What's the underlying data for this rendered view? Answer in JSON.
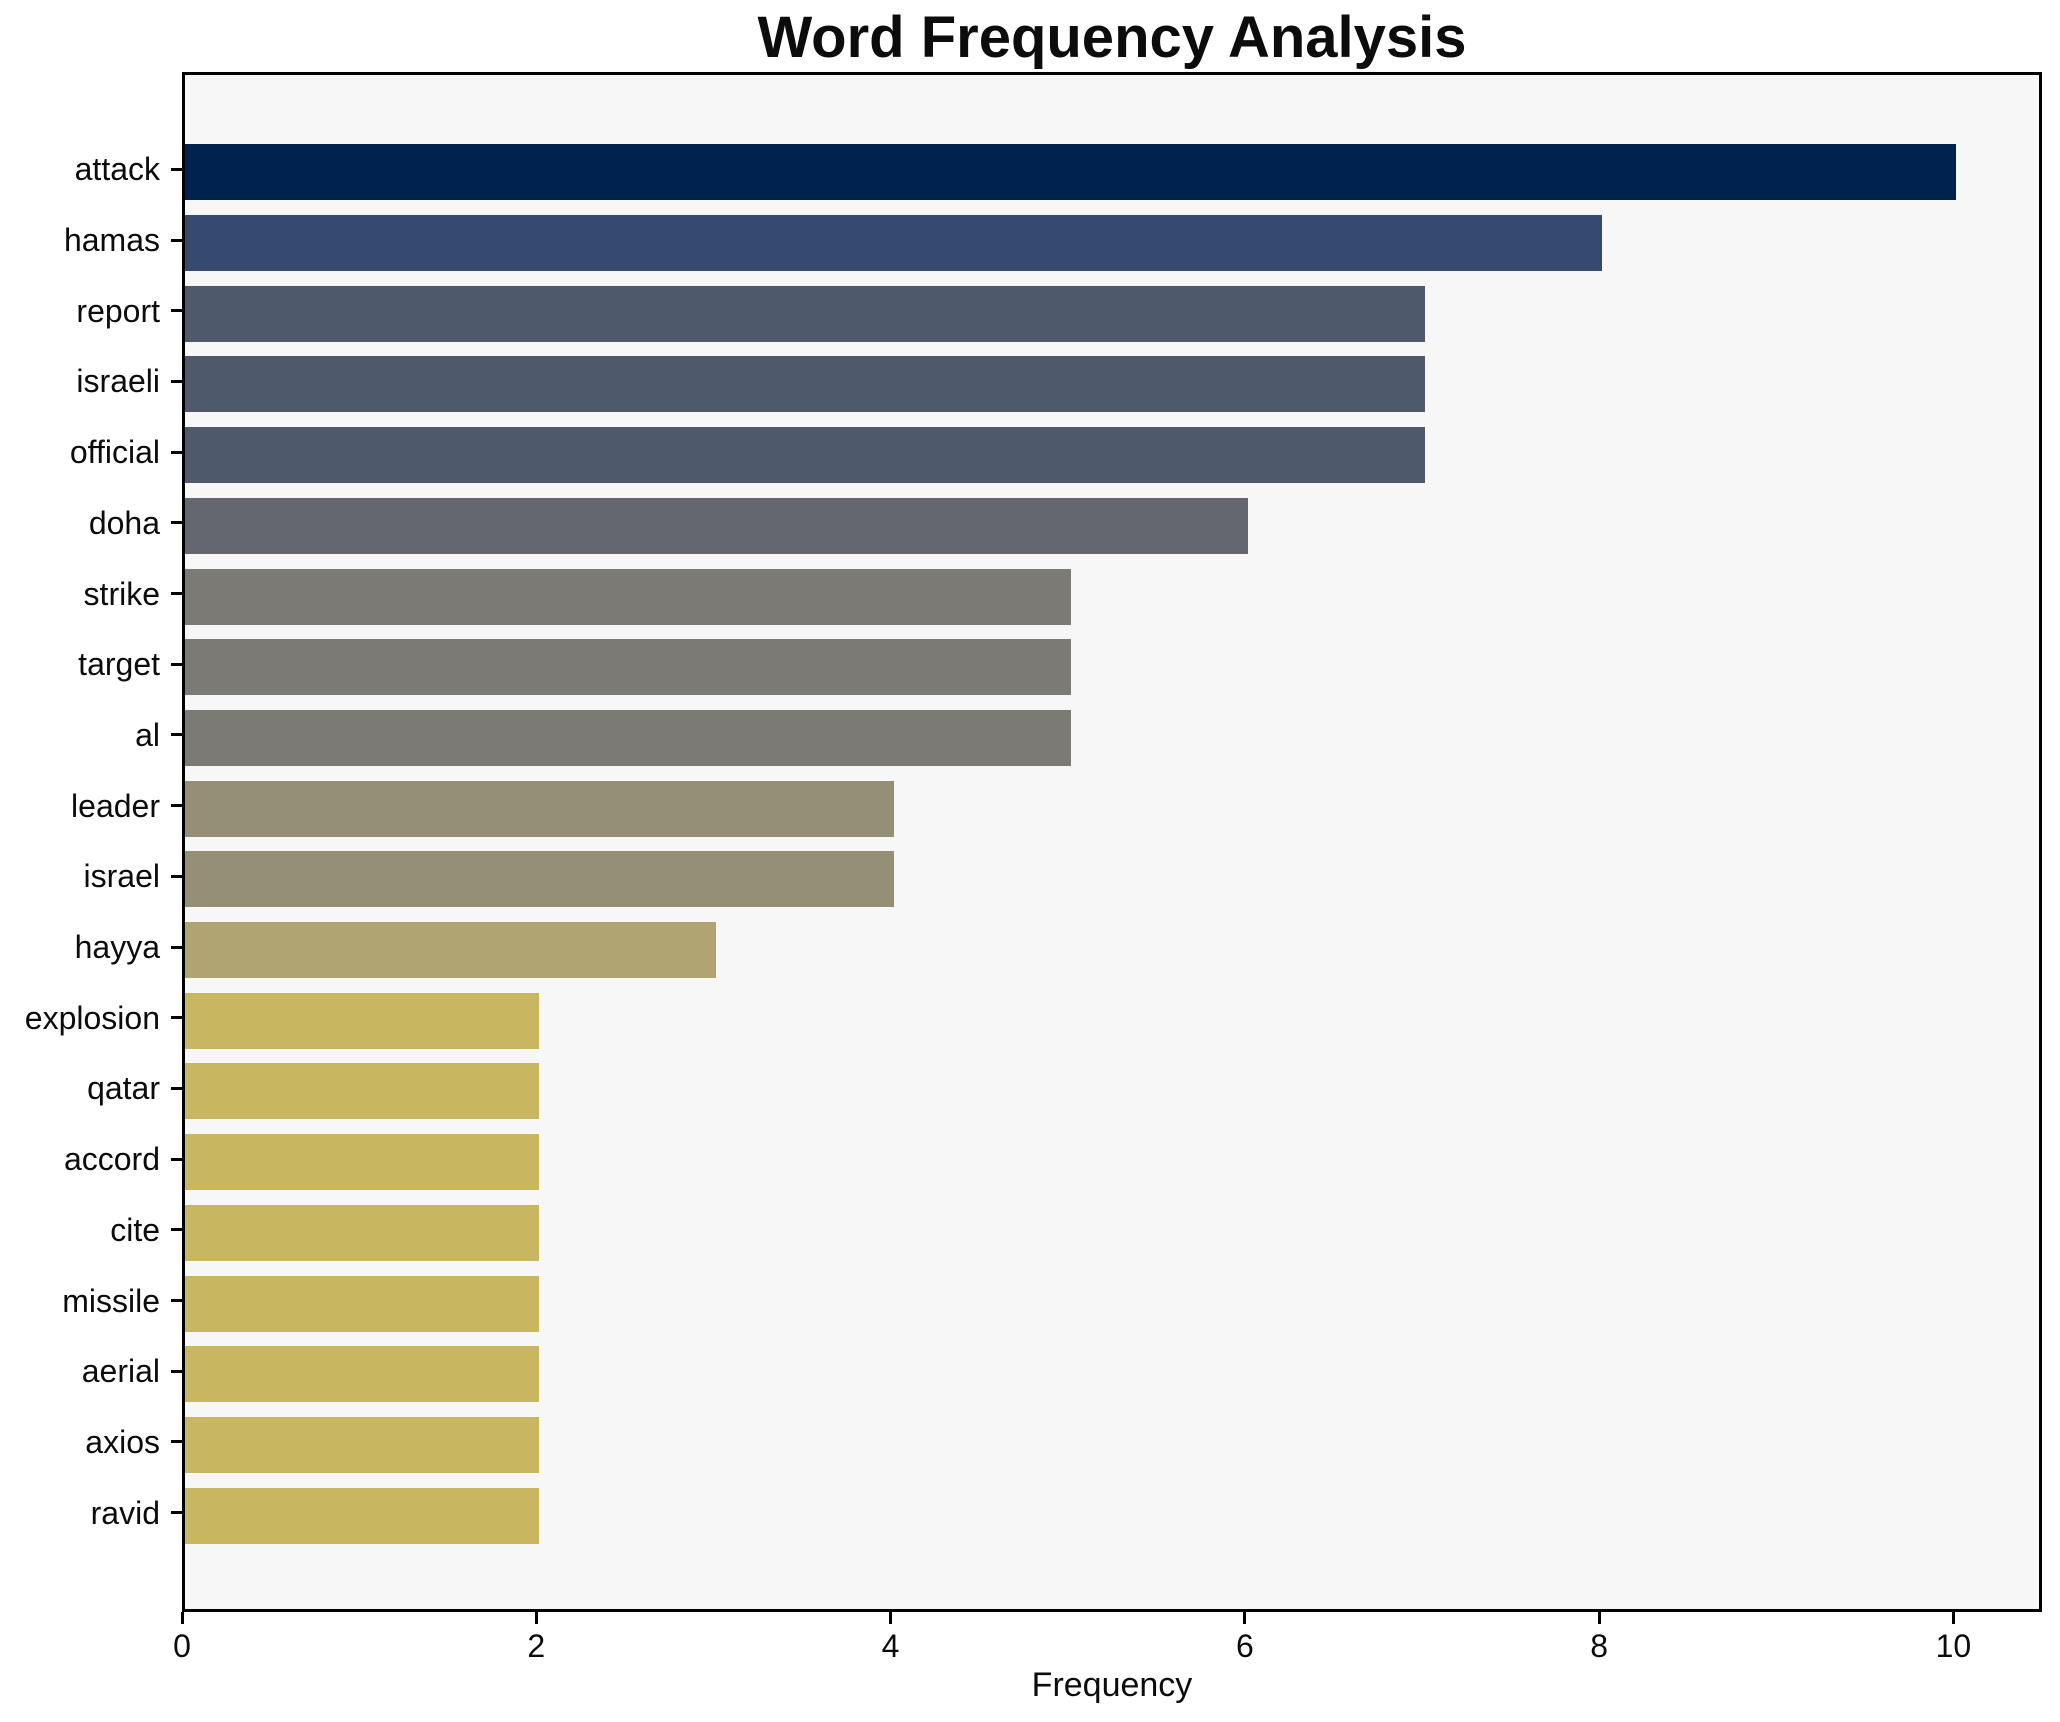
{
  "chart_data": {
    "type": "bar",
    "orientation": "horizontal",
    "title": "Word Frequency Analysis",
    "xlabel": "Frequency",
    "ylabel": "",
    "categories": [
      "attack",
      "hamas",
      "report",
      "israeli",
      "official",
      "doha",
      "strike",
      "target",
      "al",
      "leader",
      "israel",
      "hayya",
      "explosion",
      "qatar",
      "accord",
      "cite",
      "missile",
      "aerial",
      "axios",
      "ravid"
    ],
    "values": [
      10,
      8,
      7,
      7,
      7,
      6,
      5,
      5,
      5,
      4,
      4,
      3,
      2,
      2,
      2,
      2,
      2,
      2,
      2,
      2
    ],
    "bar_colors": [
      "#00224E",
      "#364A6F",
      "#4E596B",
      "#4E596B",
      "#4E596B",
      "#64676E",
      "#7B7A74",
      "#7B7A74",
      "#7B7A74",
      "#948F75",
      "#948F75",
      "#B0A572",
      "#C8B661",
      "#C8B661",
      "#C8B661",
      "#C8B661",
      "#C8B661",
      "#C8B661",
      "#C8B661",
      "#C8B661"
    ],
    "xlim": [
      0,
      10.5
    ],
    "x_ticks": [
      0,
      2,
      4,
      6,
      8,
      10
    ],
    "grid": false,
    "legend": null,
    "plot_background": "#F7F7F8",
    "figure_background": "#FFFFFF",
    "axis_color": "#000000"
  }
}
